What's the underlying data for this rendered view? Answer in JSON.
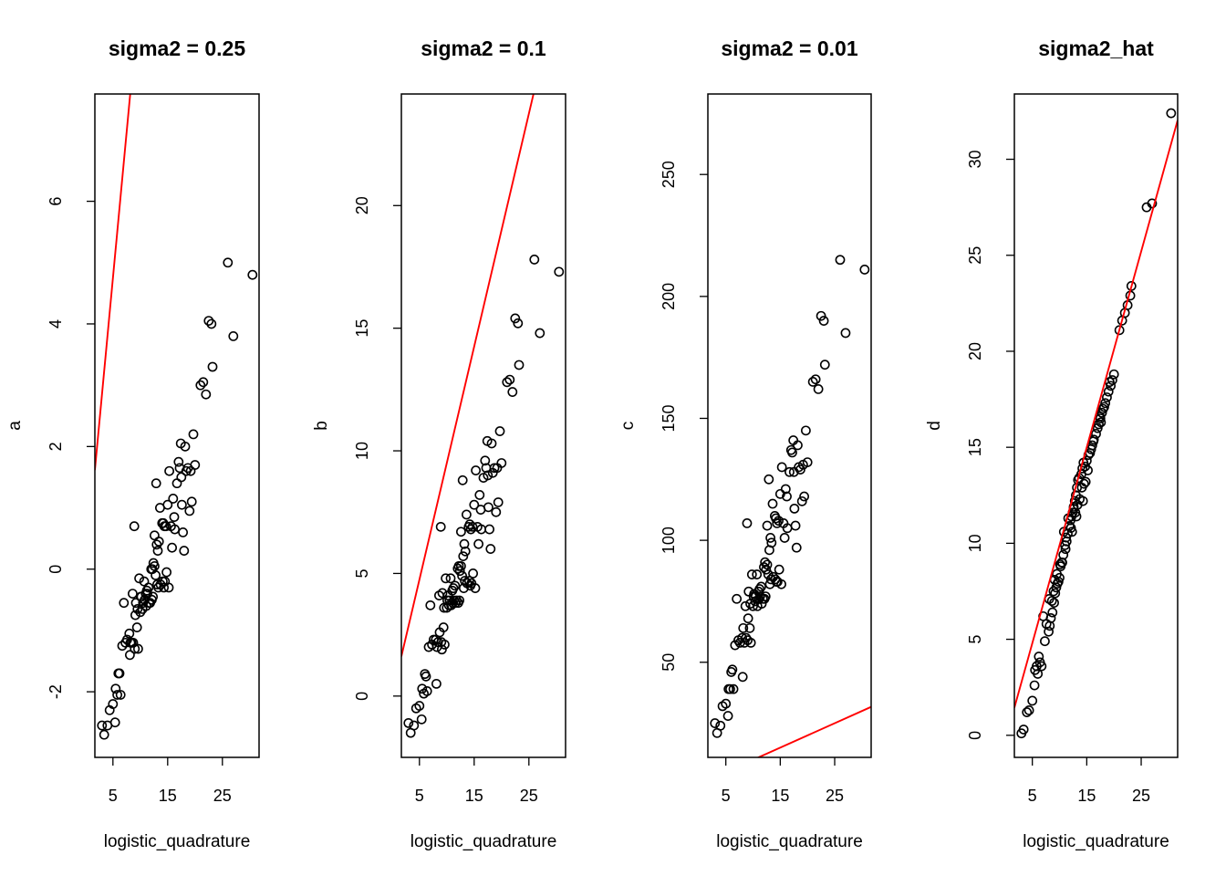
{
  "chart_data": [
    {
      "type": "scatter",
      "title": "sigma2 = 0.25",
      "xlabel": "logistic_quadrature",
      "ylabel": "a",
      "xlim": [
        1.7,
        31.7
      ],
      "ylim": [
        -3.07,
        7.75
      ],
      "xticks": [
        5,
        15,
        25
      ],
      "yticks": [
        -2,
        0,
        2,
        4,
        6
      ],
      "grid": false,
      "legend": "none",
      "line": {
        "slope": 0.95,
        "intercept": 0.0
      },
      "x": [
        3.0,
        3.4,
        4.0,
        4.4,
        5.0,
        5.4,
        6.0,
        6.4,
        6.7,
        7.3,
        8.0,
        8.2,
        8.4,
        8.7,
        9.0,
        9.2,
        9.4,
        9.6,
        10.0,
        10.2,
        10.5,
        10.7,
        11.0,
        11.2,
        11.5,
        11.8,
        12.0,
        12.2,
        12.4,
        12.6,
        12.8,
        13.0,
        13.2,
        13.4,
        13.6,
        14.0,
        14.2,
        14.4,
        14.7,
        15.0,
        15.3,
        15.6,
        16.0,
        16.3,
        16.7,
        17.0,
        17.2,
        17.5,
        17.8,
        18.0,
        18.4,
        18.7,
        19.0,
        19.4,
        19.7,
        20.0,
        21.0,
        21.5,
        22.0,
        22.5,
        23.0,
        23.2,
        26.0,
        27.0,
        30.5,
        5.5,
        5.8,
        6.2,
        7.6,
        8.6,
        9.8,
        10.4,
        11.3,
        12.1,
        12.9,
        13.7,
        14.5,
        15.2,
        16.2,
        17.4,
        18.2,
        19.2,
        8.9,
        9.5,
        10.8,
        11.6,
        12.6,
        13.3,
        14.1,
        14.8,
        15.8,
        17.6,
        7.0,
        8.1,
        9.1,
        10.1,
        11.1,
        12.3,
        13.1,
        14.3
      ],
      "y": [
        -2.55,
        -2.7,
        -2.55,
        -2.3,
        -2.2,
        -2.5,
        -1.7,
        -2.05,
        -1.25,
        -1.2,
        -1.05,
        -1.2,
        -1.2,
        -1.2,
        -1.3,
        -0.55,
        -0.95,
        -1.3,
        -0.7,
        -0.45,
        -0.55,
        -0.2,
        -0.4,
        -0.35,
        -0.3,
        -0.55,
        0.0,
        0.0,
        0.1,
        0.05,
        -0.1,
        0.4,
        0.3,
        0.45,
        1.0,
        0.75,
        0.75,
        0.7,
        0.7,
        1.05,
        1.6,
        0.7,
        1.15,
        0.65,
        1.4,
        1.75,
        1.65,
        1.5,
        0.6,
        0.3,
        1.6,
        1.65,
        0.95,
        1.1,
        2.2,
        1.7,
        3.0,
        3.05,
        2.85,
        4.05,
        4.0,
        3.3,
        5.0,
        3.8,
        4.8,
        -1.95,
        -2.05,
        -1.7,
        -1.15,
        -0.4,
        -0.15,
        -0.65,
        -0.4,
        -0.5,
        1.4,
        -0.25,
        -0.2,
        -0.3,
        0.85,
        2.05,
        2.0,
        1.6,
        0.7,
        -0.65,
        -0.5,
        -0.55,
        0.55,
        -0.3,
        -0.2,
        -0.05,
        0.35,
        1.05,
        -0.55,
        -1.4,
        -0.75,
        -0.45,
        -0.6,
        -0.45,
        -0.25,
        -0.3
      ]
    },
    {
      "type": "scatter",
      "title": "sigma2 = 0.1",
      "xlabel": "logistic_quadrature",
      "ylabel": "b",
      "xlim": [
        1.7,
        31.7
      ],
      "ylim": [
        -2.5,
        24.55
      ],
      "xticks": [
        5,
        15,
        25
      ],
      "yticks": [
        0,
        5,
        10,
        15,
        20
      ],
      "grid": false,
      "legend": "none",
      "line": {
        "slope": 0.95,
        "intercept": 0.0
      },
      "x": [
        3.0,
        3.4,
        4.0,
        4.4,
        5.0,
        5.4,
        6.0,
        6.4,
        6.7,
        7.3,
        8.0,
        8.2,
        8.4,
        8.7,
        9.0,
        9.2,
        9.4,
        9.6,
        10.0,
        10.2,
        10.5,
        10.7,
        11.0,
        11.2,
        11.5,
        11.8,
        12.0,
        12.2,
        12.4,
        12.6,
        12.8,
        13.0,
        13.2,
        13.4,
        13.6,
        14.0,
        14.2,
        14.4,
        14.7,
        15.0,
        15.3,
        15.6,
        16.0,
        16.3,
        16.7,
        17.0,
        17.2,
        17.5,
        17.8,
        18.0,
        18.4,
        18.7,
        19.0,
        19.4,
        19.7,
        20.0,
        21.0,
        21.5,
        22.0,
        22.5,
        23.0,
        23.2,
        26.0,
        27.0,
        30.5,
        5.5,
        5.8,
        6.2,
        7.6,
        8.6,
        9.8,
        10.4,
        11.3,
        12.1,
        12.9,
        13.7,
        14.5,
        15.2,
        16.2,
        17.4,
        18.2,
        19.2,
        8.9,
        9.5,
        10.8,
        11.6,
        12.6,
        13.3,
        14.1,
        14.8,
        15.8,
        17.6,
        7.0,
        8.1,
        9.1,
        10.1,
        11.1,
        12.3,
        13.1,
        14.3
      ],
      "y": [
        -1.1,
        -1.5,
        -1.2,
        -0.5,
        -0.4,
        -0.95,
        0.9,
        0.2,
        2.0,
        2.1,
        2.3,
        2.0,
        2.2,
        2.6,
        2.2,
        4.2,
        2.8,
        2.1,
        3.6,
        4.1,
        3.9,
        4.8,
        4.3,
        4.4,
        4.5,
        3.9,
        5.2,
        5.3,
        5.1,
        5.3,
        4.9,
        5.7,
        6.2,
        5.9,
        7.4,
        6.9,
        7.0,
        6.8,
        6.9,
        7.8,
        9.2,
        6.9,
        8.2,
        6.8,
        8.9,
        9.6,
        9.3,
        9.0,
        6.8,
        6.0,
        9.1,
        9.3,
        7.5,
        7.9,
        10.8,
        9.5,
        12.8,
        12.9,
        12.4,
        15.4,
        15.2,
        13.5,
        17.8,
        14.8,
        17.3,
        0.3,
        0.1,
        0.8,
        2.3,
        4.1,
        4.8,
        3.7,
        3.9,
        3.8,
        8.8,
        4.6,
        4.6,
        4.4,
        7.6,
        10.4,
        10.3,
        9.3,
        6.9,
        3.6,
        3.7,
        3.8,
        6.7,
        4.7,
        4.7,
        5.0,
        6.2,
        7.7,
        3.7,
        0.5,
        1.9,
        3.9,
        3.8,
        3.9,
        4.4,
        4.5
      ]
    },
    {
      "type": "scatter",
      "title": "sigma2 = 0.01",
      "xlabel": "logistic_quadrature",
      "ylabel": "c",
      "xlim": [
        1.7,
        31.7
      ],
      "ylim": [
        11.0,
        283.0
      ],
      "xticks": [
        5,
        15,
        25
      ],
      "yticks": [
        50,
        100,
        150,
        200,
        250
      ],
      "grid": false,
      "legend": "none",
      "line": {
        "slope": 1.0,
        "intercept": 0.0
      },
      "x": [
        3.0,
        3.4,
        4.0,
        4.4,
        5.0,
        5.4,
        6.0,
        6.4,
        6.7,
        7.3,
        8.0,
        8.2,
        8.4,
        8.7,
        9.0,
        9.2,
        9.4,
        9.6,
        10.0,
        10.2,
        10.5,
        10.7,
        11.0,
        11.2,
        11.5,
        11.8,
        12.0,
        12.2,
        12.4,
        12.6,
        12.8,
        13.0,
        13.2,
        13.4,
        13.6,
        14.0,
        14.2,
        14.4,
        14.7,
        15.0,
        15.3,
        15.6,
        16.0,
        16.3,
        16.7,
        17.0,
        17.2,
        17.5,
        17.8,
        18.0,
        18.4,
        18.7,
        19.0,
        19.4,
        19.7,
        20.0,
        21.0,
        21.5,
        22.0,
        22.5,
        23.0,
        23.2,
        26.0,
        27.0,
        30.5,
        5.5,
        5.8,
        6.2,
        7.6,
        8.6,
        9.8,
        10.4,
        11.3,
        12.1,
        12.9,
        13.7,
        14.5,
        15.2,
        16.2,
        17.4,
        18.2,
        19.2,
        8.9,
        9.5,
        10.8,
        11.6,
        12.6,
        13.3,
        14.1,
        14.8,
        15.8,
        17.6,
        7.0,
        8.1,
        9.1,
        10.1,
        11.1,
        12.3,
        13.1,
        14.3
      ],
      "y": [
        25,
        21,
        24,
        32,
        33,
        28,
        46,
        39,
        57,
        59,
        60,
        64,
        58,
        60,
        59,
        79,
        64,
        58,
        73,
        78,
        77,
        86,
        79,
        80,
        81,
        76,
        89,
        91,
        88,
        90,
        86,
        96,
        101,
        99,
        115,
        110,
        109,
        107,
        108,
        119,
        130,
        107,
        121,
        105,
        128,
        137,
        136,
        128,
        106,
        97,
        130,
        129,
        116,
        118,
        145,
        132,
        165,
        166,
        162,
        192,
        190,
        172,
        215,
        185,
        211,
        39,
        39,
        47,
        58,
        73,
        86,
        75,
        77,
        76,
        125,
        85,
        83,
        82,
        118,
        141,
        139,
        131,
        107,
        74,
        73,
        74,
        106,
        84,
        84,
        88,
        101,
        113,
        76,
        44,
        68,
        77,
        76,
        77,
        82,
        83
      ]
    },
    {
      "type": "scatter",
      "title": "sigma2_hat",
      "xlabel": "logistic_quadrature",
      "ylabel": "d",
      "xlim": [
        1.7,
        31.7
      ],
      "ylim": [
        -1.15,
        33.4
      ],
      "xticks": [
        5,
        15,
        25
      ],
      "yticks": [
        0,
        5,
        10,
        15,
        20,
        25,
        30
      ],
      "grid": false,
      "legend": "none",
      "line": {
        "slope": 1.02,
        "intercept": -0.3
      },
      "x": [
        3.0,
        3.4,
        4.0,
        4.4,
        5.0,
        5.4,
        6.0,
        6.4,
        6.7,
        7.3,
        8.0,
        8.2,
        8.4,
        8.7,
        9.0,
        9.2,
        9.4,
        9.6,
        10.0,
        10.2,
        10.5,
        10.7,
        11.0,
        11.2,
        11.5,
        11.8,
        12.0,
        12.2,
        12.4,
        12.6,
        12.8,
        13.0,
        13.2,
        13.4,
        13.6,
        14.0,
        14.2,
        14.4,
        14.7,
        15.0,
        15.3,
        15.6,
        16.0,
        16.3,
        16.7,
        17.0,
        17.2,
        17.5,
        17.8,
        18.0,
        18.4,
        18.7,
        19.0,
        19.4,
        19.7,
        20.0,
        21.0,
        21.5,
        22.0,
        22.5,
        23.0,
        23.2,
        26.0,
        27.0,
        30.5,
        5.5,
        5.8,
        6.2,
        7.6,
        8.6,
        9.8,
        10.4,
        11.3,
        12.1,
        12.9,
        13.7,
        14.5,
        15.2,
        16.2,
        17.4,
        18.2,
        19.2,
        8.9,
        9.5,
        10.8,
        11.6,
        12.6,
        13.3,
        14.1,
        14.8,
        15.8,
        17.6,
        7.0,
        8.1,
        9.1,
        10.1,
        11.1,
        12.3,
        13.1,
        14.3
      ],
      "y": [
        0.1,
        0.3,
        1.2,
        1.3,
        1.8,
        2.6,
        3.2,
        3.8,
        3.6,
        4.9,
        5.4,
        5.7,
        6.1,
        6.4,
        6.9,
        7.4,
        7.7,
        7.9,
        8.2,
        8.8,
        9.0,
        9.4,
        9.9,
        10.3,
        10.5,
        10.9,
        11.2,
        11.4,
        11.6,
        11.9,
        12.2,
        12.5,
        12.9,
        13.3,
        13.4,
        13.6,
        13.9,
        14.2,
        14.0,
        14.3,
        14.6,
        14.7,
        15.1,
        15.4,
        15.7,
        16.0,
        16.2,
        16.5,
        16.8,
        17.0,
        17.3,
        17.6,
        17.9,
        18.2,
        18.5,
        18.8,
        21.1,
        21.6,
        22.0,
        22.4,
        22.9,
        23.4,
        27.5,
        27.7,
        32.4,
        3.4,
        3.6,
        4.1,
        5.8,
        7.0,
        8.0,
        9.0,
        10.1,
        10.8,
        11.6,
        12.3,
        13.1,
        13.8,
        15.3,
        16.6,
        17.1,
        18.4,
        7.5,
        8.4,
        10.6,
        11.3,
        11.8,
        12.0,
        12.9,
        13.2,
        14.9,
        16.3,
        6.2,
        7.1,
        8.1,
        8.9,
        9.7,
        10.6,
        11.4,
        12.2
      ]
    }
  ],
  "colors": {
    "line": "#ff0000",
    "points": "#000000",
    "frame": "#000000",
    "background": "#ffffff"
  }
}
